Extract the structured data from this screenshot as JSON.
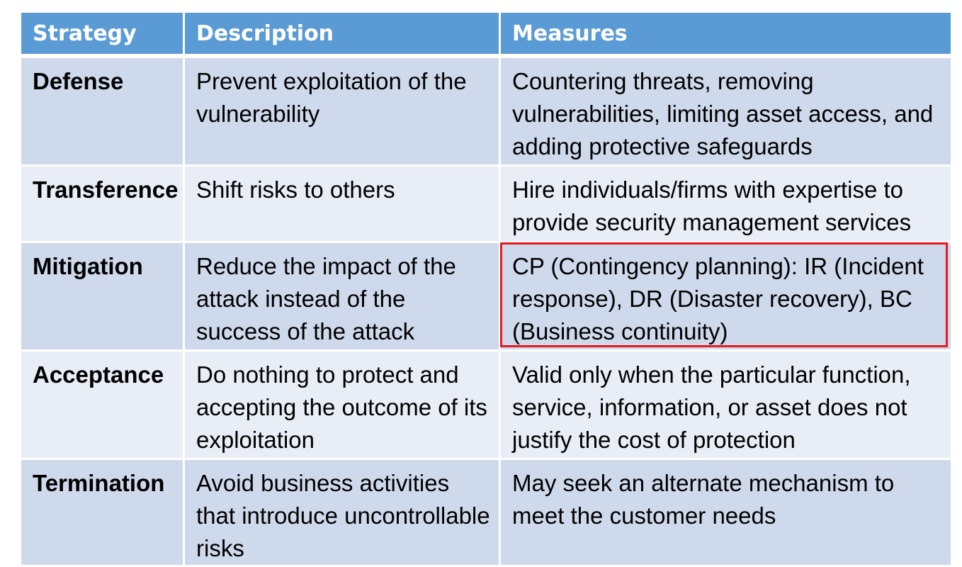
{
  "colors": {
    "header_bg": "#5b9bd5",
    "row_dark": "#cfd9ec",
    "row_light": "#e9edf6",
    "highlight": "#e8191f"
  },
  "table": {
    "headers": [
      "Strategy",
      "Description",
      "Measures"
    ],
    "rows": [
      {
        "strategy": "Defense",
        "description": "Prevent exploitation of the vulnerability",
        "measures": "Countering threats, removing vulnerabilities, limiting asset access, and adding protective safeguards"
      },
      {
        "strategy": "Transference",
        "description": "Shift risks to others",
        "measures": "Hire individuals/firms with expertise to provide security management services"
      },
      {
        "strategy": "Mitigation",
        "description": "Reduce the impact of the attack instead of the success of the attack",
        "measures": "CP (Contingency planning): IR (Incident response), DR (Disaster recovery), BC (Business continuity)",
        "highlighted": true
      },
      {
        "strategy": "Acceptance",
        "description": "Do nothing to protect and accepting the outcome of its exploitation",
        "measures": "Valid only when the particular function, service, information, or asset does not justify the cost of protection"
      },
      {
        "strategy": "Termination",
        "description": "Avoid business activities that introduce uncontrollable risks",
        "measures": "May seek an alternate mechanism to meet the customer needs"
      }
    ]
  }
}
